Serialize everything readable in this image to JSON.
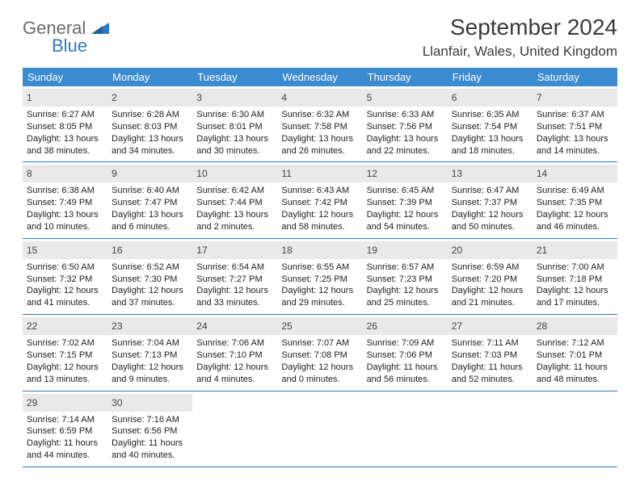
{
  "logo": {
    "word1": "General",
    "word2": "Blue",
    "triangle_color": "#2f79c2"
  },
  "title": "September 2024",
  "location": "Llanfair, Wales, United Kingdom",
  "colors": {
    "header_bg": "#3b8bd0",
    "header_text": "#ffffff",
    "daynum_bg": "#e9e9e9",
    "rule": "#2f79c2",
    "body_text": "#222222",
    "logo_gray": "#6a6a6a",
    "logo_blue": "#2f79c2"
  },
  "fonts": {
    "title_size": 28,
    "location_size": 17,
    "header_size": 13,
    "daynum_size": 12,
    "body_size": 11
  },
  "weekdays": [
    "Sunday",
    "Monday",
    "Tuesday",
    "Wednesday",
    "Thursday",
    "Friday",
    "Saturday"
  ],
  "weeks": [
    [
      {
        "n": "1",
        "sr": "6:27 AM",
        "ss": "8:05 PM",
        "dl": "13 hours and 38 minutes."
      },
      {
        "n": "2",
        "sr": "6:28 AM",
        "ss": "8:03 PM",
        "dl": "13 hours and 34 minutes."
      },
      {
        "n": "3",
        "sr": "6:30 AM",
        "ss": "8:01 PM",
        "dl": "13 hours and 30 minutes."
      },
      {
        "n": "4",
        "sr": "6:32 AM",
        "ss": "7:58 PM",
        "dl": "13 hours and 26 minutes."
      },
      {
        "n": "5",
        "sr": "6:33 AM",
        "ss": "7:56 PM",
        "dl": "13 hours and 22 minutes."
      },
      {
        "n": "6",
        "sr": "6:35 AM",
        "ss": "7:54 PM",
        "dl": "13 hours and 18 minutes."
      },
      {
        "n": "7",
        "sr": "6:37 AM",
        "ss": "7:51 PM",
        "dl": "13 hours and 14 minutes."
      }
    ],
    [
      {
        "n": "8",
        "sr": "6:38 AM",
        "ss": "7:49 PM",
        "dl": "13 hours and 10 minutes."
      },
      {
        "n": "9",
        "sr": "6:40 AM",
        "ss": "7:47 PM",
        "dl": "13 hours and 6 minutes."
      },
      {
        "n": "10",
        "sr": "6:42 AM",
        "ss": "7:44 PM",
        "dl": "13 hours and 2 minutes."
      },
      {
        "n": "11",
        "sr": "6:43 AM",
        "ss": "7:42 PM",
        "dl": "12 hours and 58 minutes."
      },
      {
        "n": "12",
        "sr": "6:45 AM",
        "ss": "7:39 PM",
        "dl": "12 hours and 54 minutes."
      },
      {
        "n": "13",
        "sr": "6:47 AM",
        "ss": "7:37 PM",
        "dl": "12 hours and 50 minutes."
      },
      {
        "n": "14",
        "sr": "6:49 AM",
        "ss": "7:35 PM",
        "dl": "12 hours and 46 minutes."
      }
    ],
    [
      {
        "n": "15",
        "sr": "6:50 AM",
        "ss": "7:32 PM",
        "dl": "12 hours and 41 minutes."
      },
      {
        "n": "16",
        "sr": "6:52 AM",
        "ss": "7:30 PM",
        "dl": "12 hours and 37 minutes."
      },
      {
        "n": "17",
        "sr": "6:54 AM",
        "ss": "7:27 PM",
        "dl": "12 hours and 33 minutes."
      },
      {
        "n": "18",
        "sr": "6:55 AM",
        "ss": "7:25 PM",
        "dl": "12 hours and 29 minutes."
      },
      {
        "n": "19",
        "sr": "6:57 AM",
        "ss": "7:23 PM",
        "dl": "12 hours and 25 minutes."
      },
      {
        "n": "20",
        "sr": "6:59 AM",
        "ss": "7:20 PM",
        "dl": "12 hours and 21 minutes."
      },
      {
        "n": "21",
        "sr": "7:00 AM",
        "ss": "7:18 PM",
        "dl": "12 hours and 17 minutes."
      }
    ],
    [
      {
        "n": "22",
        "sr": "7:02 AM",
        "ss": "7:15 PM",
        "dl": "12 hours and 13 minutes."
      },
      {
        "n": "23",
        "sr": "7:04 AM",
        "ss": "7:13 PM",
        "dl": "12 hours and 9 minutes."
      },
      {
        "n": "24",
        "sr": "7:06 AM",
        "ss": "7:10 PM",
        "dl": "12 hours and 4 minutes."
      },
      {
        "n": "25",
        "sr": "7:07 AM",
        "ss": "7:08 PM",
        "dl": "12 hours and 0 minutes."
      },
      {
        "n": "26",
        "sr": "7:09 AM",
        "ss": "7:06 PM",
        "dl": "11 hours and 56 minutes."
      },
      {
        "n": "27",
        "sr": "7:11 AM",
        "ss": "7:03 PM",
        "dl": "11 hours and 52 minutes."
      },
      {
        "n": "28",
        "sr": "7:12 AM",
        "ss": "7:01 PM",
        "dl": "11 hours and 48 minutes."
      }
    ],
    [
      {
        "n": "29",
        "sr": "7:14 AM",
        "ss": "6:59 PM",
        "dl": "11 hours and 44 minutes."
      },
      {
        "n": "30",
        "sr": "7:16 AM",
        "ss": "6:56 PM",
        "dl": "11 hours and 40 minutes."
      },
      null,
      null,
      null,
      null,
      null
    ]
  ],
  "labels": {
    "sunrise": "Sunrise:",
    "sunset": "Sunset:",
    "daylight": "Daylight:"
  }
}
